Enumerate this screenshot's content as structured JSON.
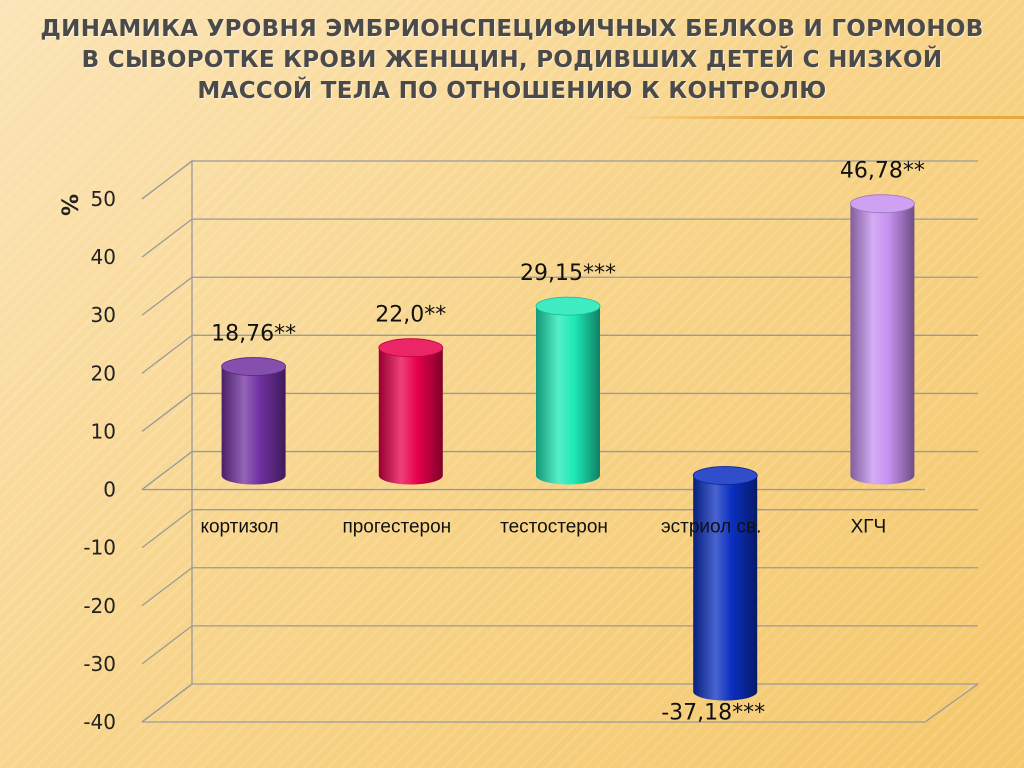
{
  "slide": {
    "title": "ДИНАМИКА УРОВНЯ ЭМБРИОНСПЕЦИФИЧНЫХ БЕЛКОВ И ГОРМОНОВ В СЫВОРОТКЕ КРОВИ ЖЕНЩИН, РОДИВШИХ ДЕТЕЙ С НИЗКОЙ МАССОЙ ТЕЛА ПО ОТНОШЕНИЮ К КОНТРОЛЮ"
  },
  "chart_data": {
    "type": "bar",
    "title": "ДИНАМИКА УРОВНЯ ЭМБРИОНСПЕЦИФИЧНЫХ БЕЛКОВ И ГОРМОНОВ В СЫВОРОТКЕ КРОВИ ЖЕНЩИН, РОДИВШИХ ДЕТЕЙ С НИЗКОЙ МАССОЙ ТЕЛА ПО ОТНОШЕНИЮ К КОНТРОЛЮ",
    "ylabel": "%",
    "xlabel": "",
    "ylim": [
      -40,
      50
    ],
    "yticks": [
      50,
      40,
      30,
      20,
      10,
      0,
      -10,
      -20,
      -30,
      -40
    ],
    "grid": true,
    "legend": "none",
    "categories": [
      "кортизол",
      "прогестерон",
      "тестостерон",
      "эстриол св.",
      "ХГЧ"
    ],
    "values": [
      18.76,
      22.0,
      29.15,
      -37.18,
      46.78
    ],
    "data_labels": [
      "18,76**",
      "22,0**",
      "29,15***",
      "-37,18***",
      "46,78**"
    ],
    "colors": [
      "#7030a0",
      "#e8004c",
      "#1de9b6",
      "#0b2fc0",
      "#c690f0"
    ]
  }
}
